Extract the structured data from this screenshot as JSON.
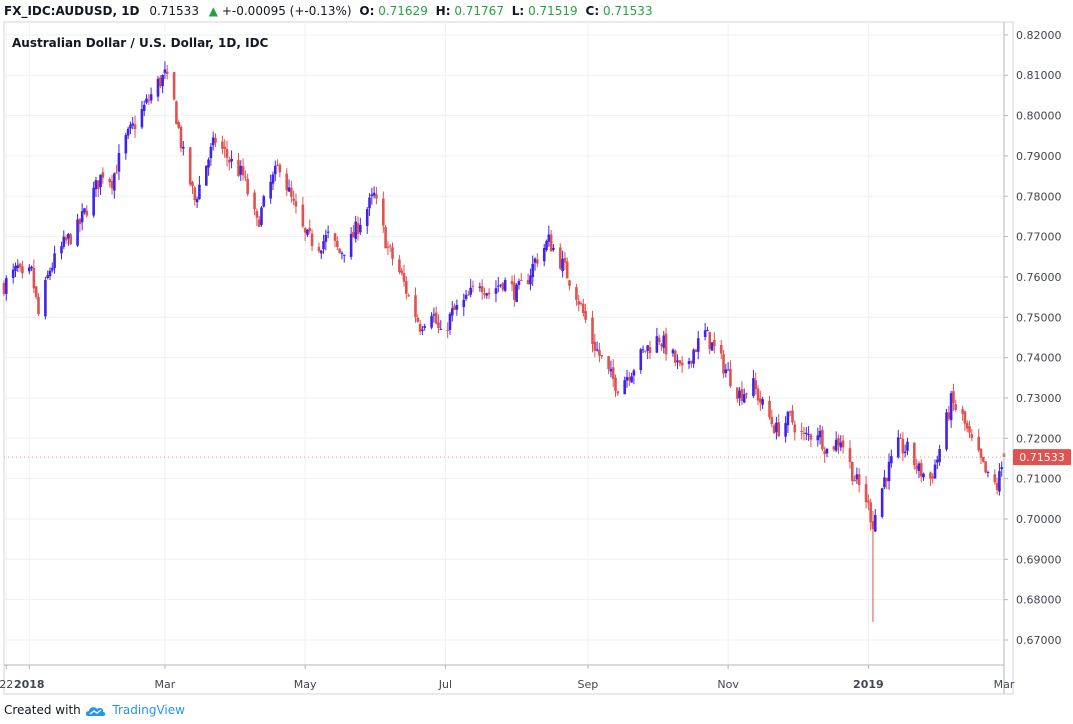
{
  "header": {
    "symbol": "FX_IDC:AUDUSD, 1D",
    "last": "0.71533",
    "change": "+-0.00095 (+-0.13%)",
    "o_label": "O:",
    "o_value": "0.71629",
    "h_label": "H:",
    "h_value": "0.71767",
    "l_label": "L:",
    "l_value": "0.71519",
    "c_label": "C:",
    "c_value": "0.71533",
    "up_icon": "triangle-up-icon"
  },
  "footer": {
    "created_with": "Created with",
    "brand": "TradingView",
    "logo_icon": "tradingview-cloud-icon"
  },
  "colors": {
    "up": "#3f22ec",
    "down": "#e0524f",
    "grid": "#eef1f5",
    "axis": "#b2b5be",
    "price_label_bg": "#e0524f",
    "header_value": "#26a041"
  },
  "chart_data": {
    "type": "candlestick",
    "title": "Australian Dollar / U.S. Dollar, 1D, IDC",
    "x_range": [
      "2017-12-21",
      "2019-03-01"
    ],
    "y_range": [
      0.6638,
      0.8232
    ],
    "grid": true,
    "last_price": "0.71533",
    "y_ticks": [
      "0.82000",
      "0.81000",
      "0.80000",
      "0.79000",
      "0.78000",
      "0.77000",
      "0.76000",
      "0.75000",
      "0.74000",
      "0.73000",
      "0.72000",
      "0.71000",
      "0.70000",
      "0.69000",
      "0.68000",
      "0.67000"
    ],
    "x_ticks": [
      {
        "label": "22",
        "date": "2017-12-22",
        "bold": false
      },
      {
        "label": "2018",
        "date": "2018-01-01",
        "bold": true
      },
      {
        "label": "Mar",
        "date": "2018-03-01",
        "bold": false
      },
      {
        "label": "May",
        "date": "2018-05-01",
        "bold": false
      },
      {
        "label": "Jul",
        "date": "2018-07-01",
        "bold": false
      },
      {
        "label": "Sep",
        "date": "2018-09-01",
        "bold": false
      },
      {
        "label": "Nov",
        "date": "2018-11-01",
        "bold": false
      },
      {
        "label": "2019",
        "date": "2019-01-01",
        "bold": true
      },
      {
        "label": "Mar",
        "date": "2019-03-01",
        "bold": false
      }
    ],
    "close_path": [
      [
        "2017-12-21",
        0.758
      ],
      [
        "2017-12-27",
        0.762
      ],
      [
        "2017-12-29",
        0.759
      ],
      [
        "2018-01-02",
        0.761
      ],
      [
        "2018-01-05",
        0.7505
      ],
      [
        "2018-01-10",
        0.762
      ],
      [
        "2018-01-16",
        0.768
      ],
      [
        "2018-01-22",
        0.772
      ],
      [
        "2018-01-29",
        0.781
      ],
      [
        "2018-02-02",
        0.786
      ],
      [
        "2018-02-06",
        0.784
      ],
      [
        "2018-02-12",
        0.794
      ],
      [
        "2018-02-20",
        0.802
      ],
      [
        "2018-02-26",
        0.808
      ],
      [
        "2018-03-01",
        0.81
      ],
      [
        "2018-03-05",
        0.803
      ],
      [
        "2018-03-09",
        0.79
      ],
      [
        "2018-03-14",
        0.779
      ],
      [
        "2018-03-19",
        0.788
      ],
      [
        "2018-03-23",
        0.794
      ],
      [
        "2018-03-29",
        0.789
      ],
      [
        "2018-04-04",
        0.785
      ],
      [
        "2018-04-10",
        0.773
      ],
      [
        "2018-04-16",
        0.783
      ],
      [
        "2018-04-20",
        0.788
      ],
      [
        "2018-04-25",
        0.779
      ],
      [
        "2018-05-01",
        0.77
      ],
      [
        "2018-05-07",
        0.768
      ],
      [
        "2018-05-11",
        0.77
      ],
      [
        "2018-05-16",
        0.766
      ],
      [
        "2018-05-21",
        0.769
      ],
      [
        "2018-05-25",
        0.774
      ],
      [
        "2018-05-31",
        0.78
      ],
      [
        "2018-06-06",
        0.767
      ],
      [
        "2018-06-12",
        0.76
      ],
      [
        "2018-06-15",
        0.755
      ],
      [
        "2018-06-20",
        0.748
      ],
      [
        "2018-06-25",
        0.752
      ],
      [
        "2018-06-29",
        0.745
      ],
      [
        "2018-07-04",
        0.751
      ],
      [
        "2018-07-10",
        0.754
      ],
      [
        "2018-07-16",
        0.759
      ],
      [
        "2018-07-20",
        0.756
      ],
      [
        "2018-07-26",
        0.759
      ],
      [
        "2018-08-01",
        0.756
      ],
      [
        "2018-08-06",
        0.76
      ],
      [
        "2018-08-09",
        0.764
      ],
      [
        "2018-08-15",
        0.769
      ],
      [
        "2018-08-21",
        0.763
      ],
      [
        "2018-08-27",
        0.756
      ],
      [
        "2018-09-03",
        0.744
      ],
      [
        "2018-09-10",
        0.736
      ],
      [
        "2018-09-14",
        0.733
      ],
      [
        "2018-09-20",
        0.737
      ],
      [
        "2018-09-26",
        0.742
      ],
      [
        "2018-10-02",
        0.745
      ],
      [
        "2018-10-08",
        0.74
      ],
      [
        "2018-10-12",
        0.736
      ],
      [
        "2018-10-17",
        0.742
      ],
      [
        "2018-10-22",
        0.746
      ],
      [
        "2018-10-26",
        0.742
      ],
      [
        "2018-11-01",
        0.736
      ],
      [
        "2018-11-06",
        0.731
      ],
      [
        "2018-11-12",
        0.733
      ],
      [
        "2018-11-16",
        0.728
      ],
      [
        "2018-11-22",
        0.722
      ],
      [
        "2018-11-28",
        0.725
      ],
      [
        "2018-12-04",
        0.72
      ],
      [
        "2018-12-10",
        0.722
      ],
      [
        "2018-12-14",
        0.717
      ],
      [
        "2018-12-20",
        0.72
      ],
      [
        "2018-12-26",
        0.71
      ],
      [
        "2018-12-31",
        0.705
      ],
      [
        "2019-01-03",
        0.699
      ],
      [
        "2019-01-08",
        0.71
      ],
      [
        "2019-01-14",
        0.718
      ],
      [
        "2019-01-18",
        0.717
      ],
      [
        "2019-01-23",
        0.712
      ],
      [
        "2019-01-28",
        0.71
      ],
      [
        "2019-01-31",
        0.715
      ],
      [
        "2019-02-06",
        0.729
      ],
      [
        "2019-02-11",
        0.725
      ],
      [
        "2019-02-14",
        0.72
      ],
      [
        "2019-02-19",
        0.714
      ],
      [
        "2019-02-22",
        0.71
      ],
      [
        "2019-02-26",
        0.708
      ],
      [
        "2019-03-01",
        0.7153
      ]
    ],
    "flash_wick": {
      "date": "2019-01-03",
      "low": 0.6745,
      "high": 0.702
    }
  }
}
